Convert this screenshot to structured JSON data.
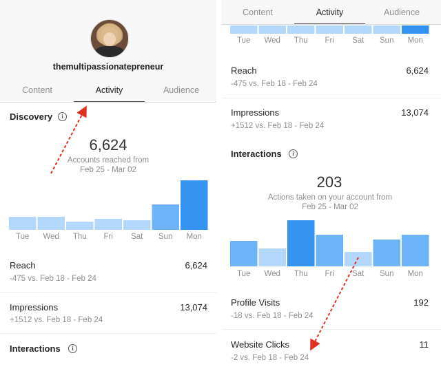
{
  "left": {
    "username": "themultipassionatepreneur",
    "tabs": [
      "Content",
      "Activity",
      "Audience"
    ],
    "active_tab": "Activity",
    "discovery": {
      "title": "Discovery",
      "total": "6,624",
      "caption_line1": "Accounts reached from",
      "caption_line2": "Feb 25 - Mar 02"
    },
    "reach": {
      "label": "Reach",
      "value": "6,624",
      "sub": "-475 vs. Feb 18 - Feb 24"
    },
    "impressions": {
      "label": "Impressions",
      "value": "13,074",
      "sub": "+1512 vs. Feb 18 - Feb 24"
    },
    "interactions_title": "Interactions"
  },
  "right": {
    "tabs": [
      "Content",
      "Activity",
      "Audience"
    ],
    "active_tab": "Activity",
    "reach": {
      "label": "Reach",
      "value": "6,624",
      "sub": "-475 vs. Feb 18 - Feb 24"
    },
    "impressions": {
      "label": "Impressions",
      "value": "13,074",
      "sub": "+1512 vs. Feb 18 - Feb 24"
    },
    "interactions": {
      "title": "Interactions",
      "total": "203",
      "caption_line1": "Actions taken on your account from",
      "caption_line2": "Feb 25 - Mar 02"
    },
    "profile_visits": {
      "label": "Profile Visits",
      "value": "192",
      "sub": "-18 vs. Feb 18 - Feb 24"
    },
    "website_clicks": {
      "label": "Website Clicks",
      "value": "11",
      "sub": "-2 vs. Feb 18 - Feb 24"
    }
  },
  "info_glyph": "i",
  "colors": {
    "bar_light": "#b3d7fb",
    "bar_mid": "#6cb4f7",
    "bar_highlight": "#3393ee",
    "arrow": "#e0301e"
  },
  "icons": {
    "info": "info-circle-icon"
  },
  "chart_data": [
    {
      "type": "bar",
      "name": "discovery",
      "categories": [
        "Tue",
        "Wed",
        "Thu",
        "Fri",
        "Sat",
        "Sun",
        "Mon"
      ],
      "values": [
        0.27,
        0.27,
        0.16,
        0.22,
        0.19,
        0.52,
        1.0
      ],
      "highlight_index": 6,
      "mid_indices": [
        5
      ]
    },
    {
      "type": "bar",
      "name": "week-top-right",
      "categories": [
        "Tue",
        "Wed",
        "Thu",
        "Fri",
        "Sat",
        "Sun",
        "Mon"
      ],
      "values": [
        1,
        1,
        1,
        1,
        1,
        1,
        1
      ],
      "highlight_index": 6,
      "mid_indices": []
    },
    {
      "type": "bar",
      "name": "interactions",
      "categories": [
        "Tue",
        "Wed",
        "Thu",
        "Fri",
        "Sat",
        "Sun",
        "Mon"
      ],
      "values": [
        0.55,
        0.39,
        1.0,
        0.68,
        0.31,
        0.58,
        0.68
      ],
      "highlight_index": 2,
      "mid_indices": [
        0,
        3,
        5,
        6
      ]
    }
  ]
}
